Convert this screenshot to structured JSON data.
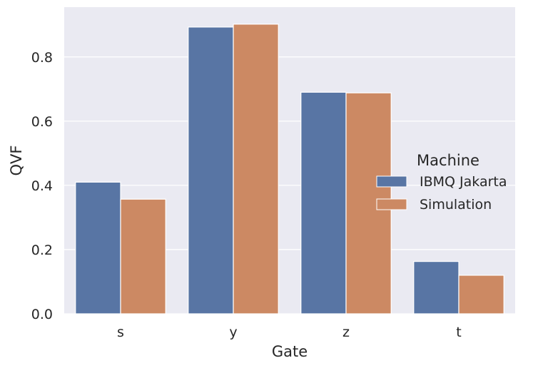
{
  "chart_data": {
    "type": "bar",
    "title": "",
    "xlabel": "Gate",
    "ylabel": "QVF",
    "categories": [
      "s",
      "y",
      "z",
      "t"
    ],
    "series": [
      {
        "name": "IBMQ Jakarta",
        "values": [
          0.41,
          0.893,
          0.69,
          0.163
        ],
        "color": "#5875a4"
      },
      {
        "name": "Simulation",
        "values": [
          0.357,
          0.902,
          0.688,
          0.12
        ],
        "color": "#cc8963"
      }
    ],
    "ylim": [
      0,
      0.955
    ],
    "yticks": [
      {
        "value": 0.0,
        "label": "0.0"
      },
      {
        "value": 0.2,
        "label": "0.2"
      },
      {
        "value": 0.4,
        "label": "0.4"
      },
      {
        "value": 0.6,
        "label": "0.6"
      },
      {
        "value": 0.8,
        "label": "0.8"
      }
    ],
    "grid": true,
    "legend": {
      "title": "Machine",
      "placement": "center-right"
    },
    "colors": {
      "background": "#eaeaf2",
      "grid": "#ffffff"
    }
  }
}
